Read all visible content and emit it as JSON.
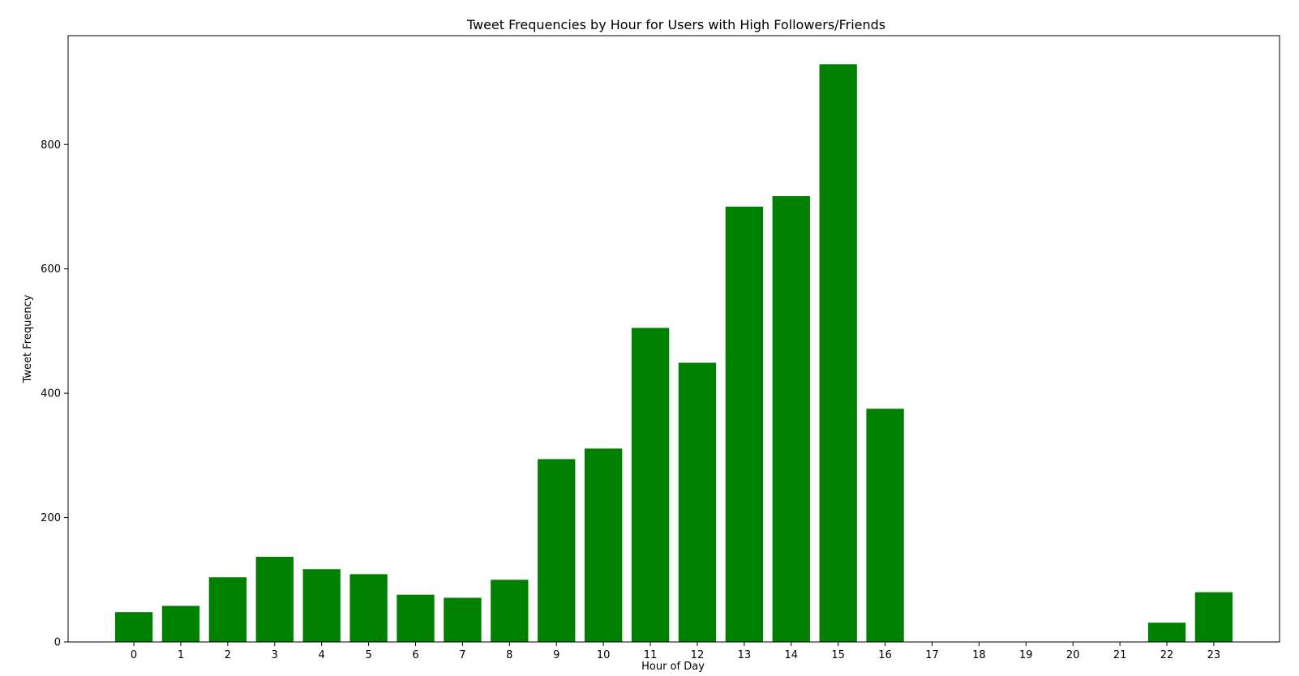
{
  "chart_data": {
    "type": "bar",
    "title": "Tweet Frequencies by Hour for Users with High Followers/Friends",
    "xlabel": "Hour of Day",
    "ylabel": "Tweet Frequency",
    "categories": [
      "0",
      "1",
      "2",
      "3",
      "4",
      "5",
      "6",
      "7",
      "8",
      "9",
      "10",
      "11",
      "12",
      "13",
      "14",
      "15",
      "16",
      "17",
      "18",
      "19",
      "20",
      "21",
      "22",
      "23"
    ],
    "values": [
      48,
      58,
      104,
      137,
      117,
      109,
      76,
      71,
      100,
      294,
      311,
      505,
      449,
      700,
      717,
      929,
      375,
      0,
      0,
      0,
      0,
      0,
      31,
      80
    ],
    "yticks": [
      0,
      200,
      400,
      600,
      800
    ],
    "ylim": [
      0,
      975
    ],
    "xlim": [
      -1.4,
      24.4
    ],
    "bar_color": "#008000",
    "grid": false,
    "legend": "none"
  }
}
